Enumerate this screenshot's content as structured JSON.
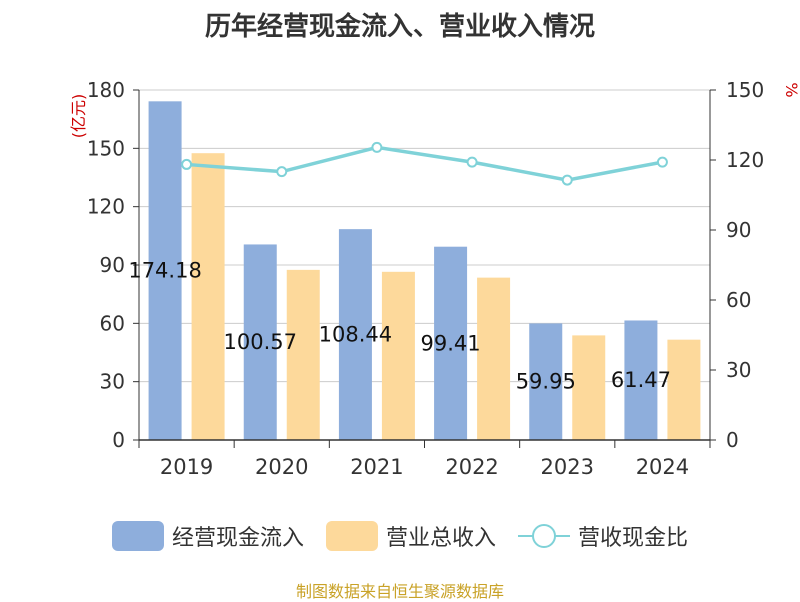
{
  "chart_data": {
    "type": "bar",
    "title": "历年经营现金流入、营业收入情况",
    "categories": [
      "2019",
      "2020",
      "2021",
      "2022",
      "2023",
      "2024"
    ],
    "series": [
      {
        "name": "经营现金流入",
        "kind": "bar",
        "axis": "left",
        "color": "#8eaedc",
        "values": [
          174.18,
          100.57,
          108.44,
          99.41,
          59.95,
          61.47
        ],
        "labels": [
          "174.18",
          "100.57",
          "108.44",
          "99.41",
          "59.95",
          "61.47"
        ]
      },
      {
        "name": "营业总收入",
        "kind": "bar",
        "axis": "left",
        "color": "#fdd99b",
        "values": [
          147.5,
          87.5,
          86.5,
          83.5,
          53.8,
          51.6
        ]
      },
      {
        "name": "营收现金比",
        "kind": "line",
        "axis": "right",
        "color": "#7fd2d8",
        "values": [
          118.1,
          115.0,
          125.4,
          119.1,
          111.4,
          119.1
        ]
      }
    ],
    "yleft": {
      "label": "(亿元)",
      "ylim": [
        0,
        180
      ],
      "ticks": [
        0,
        30,
        60,
        90,
        120,
        150,
        180
      ]
    },
    "yright": {
      "label": "%",
      "ylim": [
        0,
        150
      ],
      "ticks": [
        0,
        30,
        60,
        90,
        120,
        150
      ]
    },
    "grid": true,
    "legend_position": "bottom",
    "source": "制图数据来自恒生聚源数据库"
  }
}
